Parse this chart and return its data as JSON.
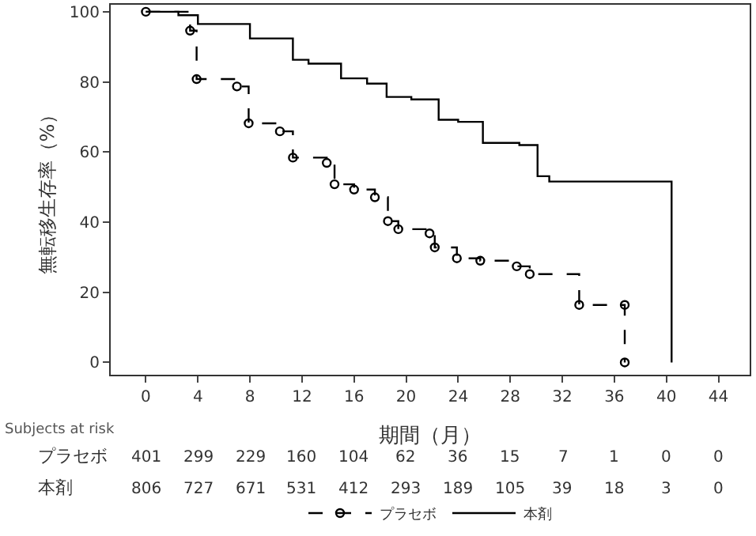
{
  "chart_data": {
    "type": "step",
    "xlabel": "期間（月）",
    "ylabel": "無転移生存率（%）",
    "xlim": [
      -2.7,
      46.4
    ],
    "xticks": [
      0,
      4,
      8,
      12,
      16,
      20,
      24,
      28,
      32,
      36,
      40,
      44
    ],
    "ylim": [
      -3.5,
      102
    ],
    "yticks": [
      0,
      20,
      40,
      60,
      80,
      100
    ],
    "legend": "bottom",
    "series": [
      {
        "name": "プラセボ",
        "color": "#000000",
        "line_style": "dashed",
        "marker": "circle",
        "x": [
          0,
          3.4,
          3.9,
          7.0,
          7.9,
          10.3,
          11.3,
          13.9,
          14.5,
          16,
          17.6,
          18.6,
          19.4,
          21.8,
          22.2,
          23.9,
          25.7,
          28.5,
          29.5,
          33.3,
          36.8,
          36.8
        ],
        "values": [
          100,
          94.6,
          80.8,
          78.7,
          68.2,
          65.9,
          58.4,
          56.9,
          50.8,
          49.3,
          47.1,
          40.3,
          38,
          36.8,
          32.8,
          29.7,
          29,
          27.4,
          25.2,
          16.4,
          16.4,
          0
        ]
      },
      {
        "name": "本剤",
        "color": "#000000",
        "line_style": "solid",
        "marker": "none",
        "x": [
          0,
          2.5,
          4,
          8,
          11.3,
          12.5,
          15,
          17,
          18.5,
          20.4,
          22.5,
          24,
          25.9,
          28.7,
          30.1,
          31,
          40.4,
          40.4
        ],
        "values": [
          100,
          99,
          96.5,
          92.4,
          86.3,
          85.2,
          81,
          79.5,
          75.7,
          75,
          69.2,
          68.6,
          62.6,
          62,
          53.1,
          51.6,
          51.6,
          0
        ]
      }
    ],
    "annotations": [
      "Subjects at risk",
      "プラセボ",
      "401",
      "299",
      "229",
      "160",
      "104",
      "62",
      "36",
      "15",
      "7",
      "1",
      "0",
      "0",
      "本剤",
      "806",
      "727",
      "671",
      "531",
      "412",
      "293",
      "189",
      "105",
      "39",
      "18",
      "3",
      "0"
    ]
  }
}
